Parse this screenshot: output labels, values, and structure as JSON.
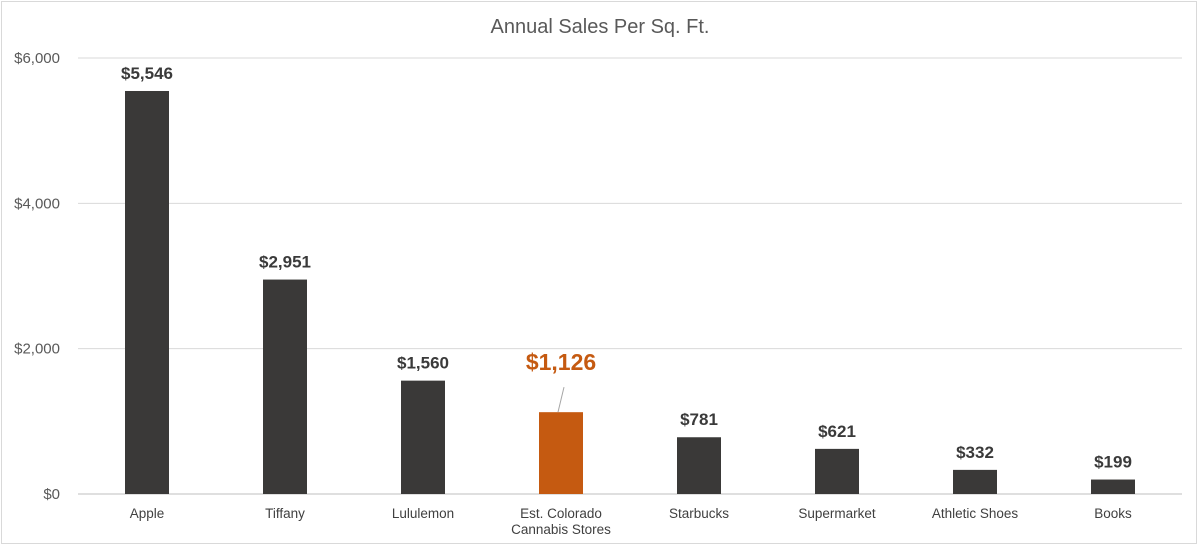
{
  "chart_data": {
    "type": "bar",
    "title": "Annual Sales Per Sq. Ft.",
    "xlabel": "",
    "ylabel": "",
    "ylim": [
      0,
      6000
    ],
    "yticks": [
      0,
      2000,
      4000,
      6000
    ],
    "ytick_labels": [
      "$0",
      "$2,000",
      "$4,000",
      "$6,000"
    ],
    "grid": true,
    "legend": "none",
    "categories": [
      [
        "Apple"
      ],
      [
        "Tiffany"
      ],
      [
        "Lululemon"
      ],
      [
        "Est. Colorado",
        "Cannabis Stores"
      ],
      [
        "Starbucks"
      ],
      [
        "Supermarket"
      ],
      [
        "Athletic Shoes"
      ],
      [
        "Books"
      ]
    ],
    "values": [
      5546,
      2951,
      1560,
      1126,
      781,
      621,
      332,
      199
    ],
    "data_labels": [
      "$5,546",
      "$2,951",
      "$1,560",
      "$1,126",
      "$781",
      "$621",
      "$332",
      "$199"
    ],
    "highlight_index": 3,
    "colors": {
      "bar": "#3a3938",
      "highlight": "#c55a11",
      "leader_line": "#a6a6a6"
    }
  }
}
